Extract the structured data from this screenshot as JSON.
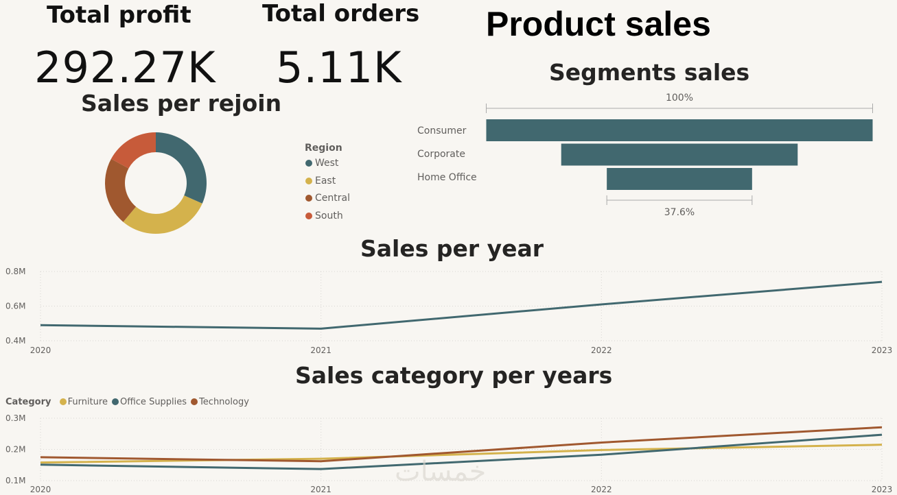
{
  "kpis": {
    "profit": {
      "title": "Total profit",
      "value": "292.27K"
    },
    "orders": {
      "title": "Total orders",
      "value": "5.11K"
    }
  },
  "page_title": "Product sales",
  "colors": {
    "west": "#41686f",
    "east": "#d4b24c",
    "central": "#a0582f",
    "south": "#c75b3a",
    "furniture": "#d4b24c",
    "office": "#41686f",
    "technology": "#a0582f",
    "funnel": "#41686f"
  },
  "watermark": "خمسات",
  "chart_data": [
    {
      "type": "pie",
      "title": "Sales per rejoin",
      "legend_title": "Region",
      "legend_position": "right",
      "labels": [
        "West",
        "East",
        "Central",
        "South"
      ],
      "values": [
        31.6,
        29.5,
        21.8,
        17.1
      ]
    },
    {
      "type": "bar",
      "subtype": "funnel",
      "title": "Segments sales",
      "categories": [
        "Consumer",
        "Corporate",
        "Home Office"
      ],
      "values": [
        100,
        61.2,
        37.6
      ],
      "top_label": "100%",
      "bottom_label": "37.6%"
    },
    {
      "type": "line",
      "title": "Sales per year",
      "x": [
        "2020",
        "2021",
        "2022",
        "2023"
      ],
      "series": [
        {
          "values": [
            0.49,
            0.47,
            0.61,
            0.74
          ]
        }
      ],
      "yticks": [
        "0.4M",
        "0.6M",
        "0.8M"
      ],
      "ylim": [
        0.4,
        0.8
      ],
      "grid": true
    },
    {
      "type": "line",
      "title": "Sales category per years",
      "legend_title": "Category",
      "legend_position": "top-left",
      "x": [
        "2020",
        "2021",
        "2022",
        "2023"
      ],
      "series": [
        {
          "name": "Furniture",
          "values": [
            0.158,
            0.17,
            0.198,
            0.215
          ]
        },
        {
          "name": "Office Supplies",
          "values": [
            0.151,
            0.137,
            0.183,
            0.247
          ]
        },
        {
          "name": "Technology",
          "values": [
            0.175,
            0.162,
            0.222,
            0.271
          ]
        }
      ],
      "yticks": [
        "0.1M",
        "0.2M",
        "0.3M"
      ],
      "ylim": [
        0.1,
        0.3
      ],
      "grid": true
    }
  ]
}
